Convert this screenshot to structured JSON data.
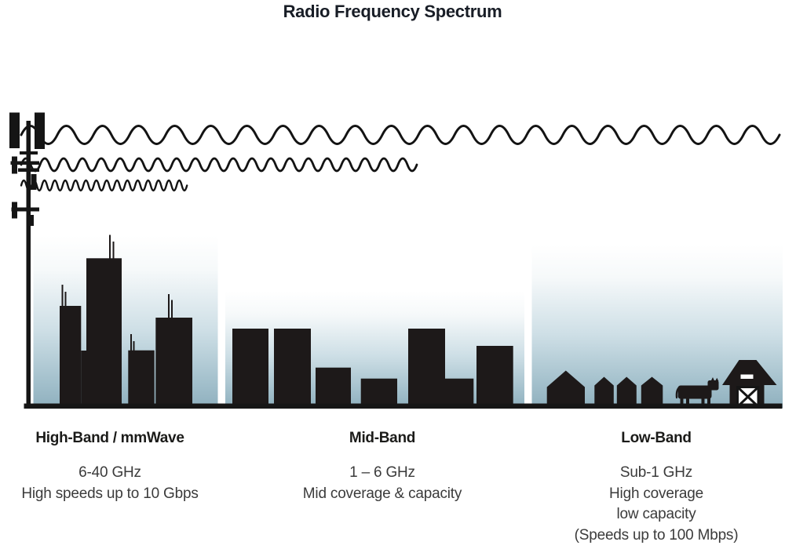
{
  "title": "Radio Frequency Spectrum",
  "colors": {
    "ink": "#1d1919",
    "sky_top": "#ffffff",
    "sky_bottom": "#8fb0be",
    "heading_text": "#1b1b19",
    "body_text": "#3b3b3b"
  },
  "scene": {
    "tower_icon": "cell-tower",
    "waves": [
      {
        "name": "low-band-wave",
        "wavelength": "long",
        "reach": "farthest"
      },
      {
        "name": "mid-band-wave",
        "wavelength": "medium",
        "reach": "medium"
      },
      {
        "name": "high-band-wave",
        "wavelength": "short",
        "reach": "shortest"
      }
    ],
    "high_band_icon": "city-skyline",
    "mid_band_icon": "town-buildings",
    "low_band_icons": [
      "houses",
      "cow",
      "barn"
    ]
  },
  "bands": [
    {
      "label": "High-Band / mmWave",
      "lines": [
        "6-40 GHz",
        "High speeds up to 10 Gbps"
      ]
    },
    {
      "label": "Mid-Band",
      "lines": [
        "1 – 6 GHz",
        "Mid coverage & capacity"
      ]
    },
    {
      "label": "Low-Band",
      "lines": [
        "Sub-1 GHz",
        "High coverage",
        "low capacity",
        "(Speeds up to 100 Mbps)"
      ]
    }
  ]
}
